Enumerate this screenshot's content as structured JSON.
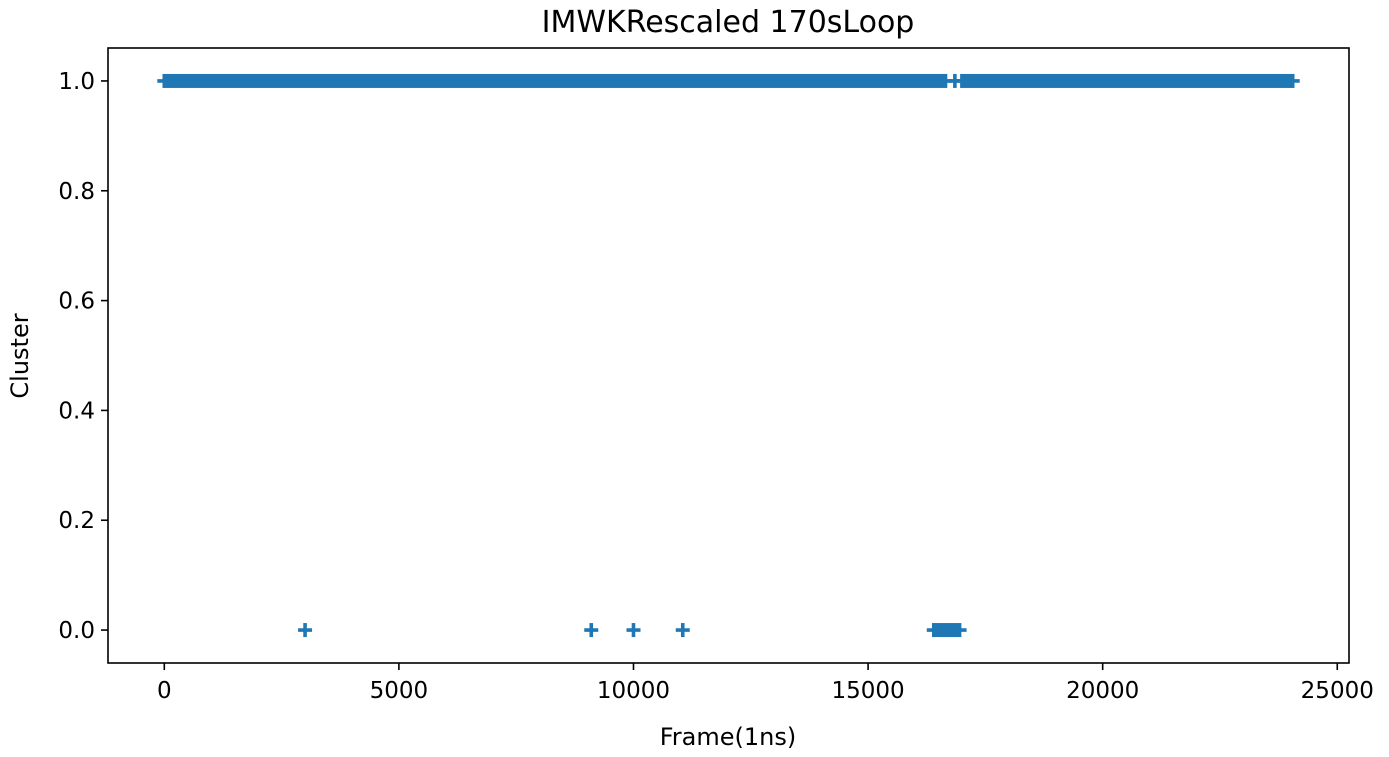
{
  "chart_data": {
    "type": "scatter",
    "title": "IMWKRescaled 170sLoop",
    "xlabel": "Frame(1ns)",
    "ylabel": "Cluster",
    "xlim": [
      -1200,
      25250
    ],
    "ylim": [
      -0.06,
      1.06
    ],
    "xticks": [
      0,
      5000,
      10000,
      15000,
      20000,
      25000
    ],
    "yticks": [
      0.0,
      0.2,
      0.4,
      0.6,
      0.8,
      1.0
    ],
    "ytick_labels": [
      "0.0",
      "0.2",
      "0.4",
      "0.6",
      "0.8",
      "1.0"
    ],
    "grid": false,
    "legend": "none",
    "marker": "plus",
    "color": "#1f77b4",
    "series": [
      {
        "runs": [
          {
            "start": 0,
            "end": 16650,
            "y": 1
          },
          {
            "start": 16850,
            "end": 16850,
            "y": 1
          },
          {
            "start": 17000,
            "end": 24050,
            "y": 1
          },
          {
            "start": 16400,
            "end": 16950,
            "y": 0
          }
        ],
        "points": [
          {
            "x": 3000,
            "y": 0
          },
          {
            "x": 9100,
            "y": 0
          },
          {
            "x": 10000,
            "y": 0
          },
          {
            "x": 11050,
            "y": 0
          }
        ]
      }
    ]
  }
}
